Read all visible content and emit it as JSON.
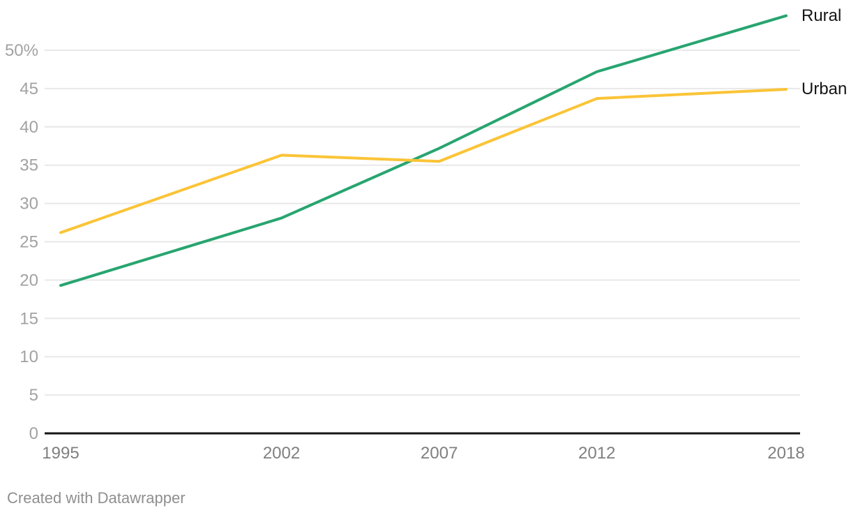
{
  "chart_data": {
    "type": "line",
    "x": [
      1995,
      2002,
      2007,
      2012,
      2018
    ],
    "x_tick_labels": [
      "1995",
      "2002",
      "2007",
      "2012",
      "2018"
    ],
    "series": [
      {
        "name": "Rural",
        "color": "#27a56f",
        "values": [
          19.3,
          28.1,
          37.2,
          47.2,
          54.5
        ]
      },
      {
        "name": "Urban",
        "color": "#fbc437",
        "values": [
          26.2,
          36.3,
          35.5,
          43.7,
          44.9
        ]
      }
    ],
    "y_ticks": [
      0,
      5,
      10,
      15,
      20,
      25,
      30,
      35,
      40,
      45,
      50
    ],
    "y_tick_labels": [
      "0",
      "5",
      "10",
      "15",
      "20",
      "25",
      "30",
      "35",
      "40",
      "45",
      "50%"
    ],
    "ylim": [
      0,
      55.7
    ],
    "xlim": [
      1995,
      2018
    ],
    "title": "",
    "xlabel": "",
    "ylabel": "",
    "grid": true,
    "legend_position": "right-of-line-ends"
  },
  "colors": {
    "background": "#ffffff",
    "grid": "#e8e8e8",
    "axis": "#161616",
    "y_tick_text": "#a2a2a2",
    "x_tick_text": "#7f7f7f",
    "label_text": "#161616",
    "attribution_text": "#8f8f8f"
  },
  "footer": {
    "attribution": "Created with Datawrapper"
  }
}
